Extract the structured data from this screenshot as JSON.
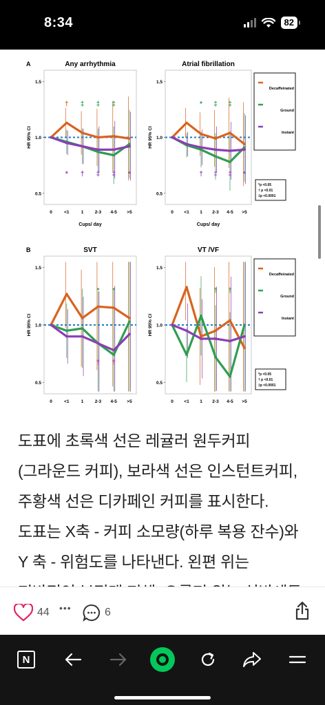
{
  "status_bar": {
    "time": "8:34",
    "battery": "82"
  },
  "figure": {
    "panels": [
      {
        "letter": "A",
        "title": "Any arrhythmia",
        "legend": false,
        "series": {
          "decaf": [
            1.0,
            1.13,
            1.04,
            1.0,
            1.01,
            0.99
          ],
          "ground": [
            1.0,
            0.96,
            0.92,
            0.87,
            0.84,
            0.94
          ],
          "instant": [
            1.0,
            0.95,
            0.92,
            0.89,
            0.89,
            0.92
          ]
        },
        "marks_top": [
          {
            "x": "<1",
            "sym": "†",
            "c": "orange"
          },
          {
            "x": "1",
            "sym": "‡",
            "c": "green"
          },
          {
            "x": "2-3",
            "sym": "‡",
            "c": "green"
          },
          {
            "x": "4-5",
            "sym": "‡",
            "c": "green"
          }
        ],
        "marks_bottom": [
          {
            "x": "<1",
            "sym": "*",
            "c": "purple"
          },
          {
            "x": "1",
            "sym": "†",
            "c": "purple"
          },
          {
            "x": "2-3",
            "sym": "‡",
            "c": "purple"
          },
          {
            "x": "4-5",
            "sym": "‡",
            "c": "purple"
          },
          {
            "x": ">5",
            "sym": "*",
            "c": "purple"
          }
        ]
      },
      {
        "letter": "",
        "title": "Atrial fibrillation",
        "legend": true,
        "series": {
          "decaf": [
            1.0,
            1.13,
            1.03,
            0.99,
            1.04,
            0.94
          ],
          "ground": [
            1.0,
            0.93,
            0.89,
            0.83,
            0.78,
            0.91
          ],
          "instant": [
            1.0,
            0.94,
            0.91,
            0.89,
            0.88,
            0.89
          ]
        },
        "marks_top": [
          {
            "x": "1",
            "sym": "*",
            "c": "green"
          },
          {
            "x": "2-3",
            "sym": "‡",
            "c": "green"
          },
          {
            "x": "4-5",
            "sym": "‡",
            "c": "green"
          }
        ],
        "marks_bottom": [
          {
            "x": "1",
            "sym": "†",
            "c": "purple"
          },
          {
            "x": "2-3",
            "sym": "‡",
            "c": "purple"
          },
          {
            "x": "4-5",
            "sym": "‡",
            "c": "purple"
          },
          {
            "x": ">5",
            "sym": "*",
            "c": "purple"
          }
        ]
      },
      {
        "letter": "B",
        "title": "SVT",
        "legend": false,
        "series": {
          "decaf": [
            1.0,
            1.27,
            1.06,
            1.16,
            1.15,
            1.06
          ],
          "ground": [
            1.0,
            0.95,
            0.97,
            0.84,
            0.74,
            1.03
          ],
          "instant": [
            1.0,
            0.9,
            0.9,
            0.84,
            0.78,
            0.92
          ]
        },
        "marks_top": [
          {
            "x": "2-3",
            "sym": "*",
            "c": "green"
          },
          {
            "x": "4-5",
            "sym": "*",
            "c": "green"
          }
        ],
        "marks_bottom": [
          {
            "x": "2-3",
            "sym": "†",
            "c": "purple"
          },
          {
            "x": "4-5",
            "sym": "†",
            "c": "purple"
          }
        ]
      },
      {
        "letter": "",
        "title": "VT /VF",
        "legend": true,
        "series": {
          "decaf": [
            1.0,
            1.33,
            0.9,
            0.95,
            1.04,
            0.8
          ],
          "ground": [
            1.0,
            0.74,
            1.08,
            0.72,
            0.55,
            1.0
          ],
          "instant": [
            1.0,
            0.95,
            0.88,
            0.88,
            0.86,
            0.9
          ]
        },
        "marks_top": [
          {
            "x": "2-3",
            "sym": "†",
            "c": "green"
          },
          {
            "x": "4-5",
            "sym": "†",
            "c": "green"
          }
        ],
        "marks_bottom": []
      }
    ],
    "x_ticks": [
      "0",
      "<1",
      "1",
      "2-3",
      "4-5",
      ">5"
    ],
    "y_ticks": [
      "1.5",
      "1.0",
      "0.5"
    ],
    "ylabel": "HR 95% CI",
    "xlabel": "Cups/ day",
    "legend_items": [
      "Decaffeinated",
      "Ground",
      "Instant"
    ],
    "pnote": [
      "*p <0.05",
      "† p <0.01",
      "‡p <0.0001"
    ],
    "colors": {
      "orange": "#d9631e",
      "green": "#2f9e4f",
      "purple": "#8a3fb4",
      "ref": "#1f7bbf"
    }
  },
  "article": {
    "text": "도표에 초록색 선은 레귤러 원두커피(그라운드 커피), 보라색 선은 인스턴트커피, 주황색 선은 디카페인 커피를 표시한다. 도표는 X축 - 커피 소모량(하루 복용 잔수)와 Y 축 - 위험도를 나타낸다.  왼편 위는 전반적인 부정맥 전체, 오른편 위는 심방세동, 왼편 아래는 심"
  },
  "engagement": {
    "likes": "44",
    "more": "•••",
    "comments": "6"
  },
  "toolbar": {
    "home_letter": "N"
  }
}
